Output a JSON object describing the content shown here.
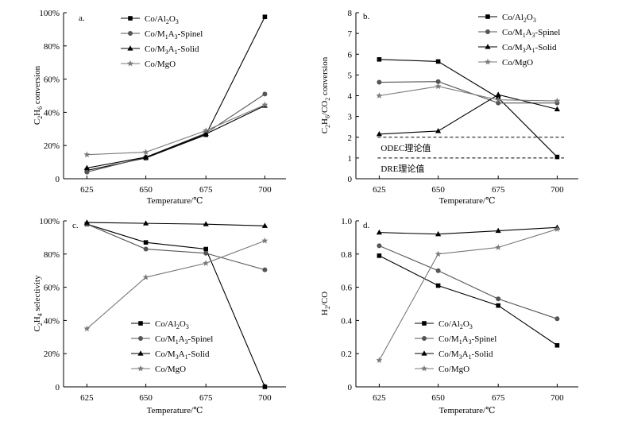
{
  "chart_data": [
    {
      "type": "line",
      "panel_label": "a.",
      "title": "",
      "xlabel": "Temperature/℃",
      "ylabel_parts": [
        "C",
        "2",
        "H",
        "6",
        " conversion"
      ],
      "categories": [
        "625",
        "650",
        "675",
        "700"
      ],
      "ylim": [
        0,
        100
      ],
      "yticks": [
        0,
        20,
        40,
        60,
        80,
        100
      ],
      "ytick_labels": [
        "0",
        "20%",
        "40%",
        "60%",
        "80%",
        "100%"
      ],
      "legend_position": "top-right",
      "series": [
        {
          "name": "Co/Al2O3",
          "label_parts": [
            "Co/Al",
            "2",
            "O",
            "3",
            ""
          ],
          "marker": "square",
          "color": "#000000",
          "values": [
            5.0,
            12.5,
            26.5,
            97.5
          ]
        },
        {
          "name": "Co/M1A3-Spinel",
          "label_parts": [
            "Co/M",
            "1",
            "A",
            "3",
            "-Spinel"
          ],
          "marker": "circle",
          "color": "#555555",
          "values": [
            4.0,
            13.0,
            27.5,
            51.0
          ]
        },
        {
          "name": "Co/M3A1-Solid",
          "label_parts": [
            "Co/M",
            "3",
            "A",
            "1",
            "-Solid"
          ],
          "marker": "triangle",
          "color": "#000000",
          "values": [
            6.5,
            13.0,
            27.0,
            44.0
          ]
        },
        {
          "name": "Co/MgO",
          "label_parts": [
            "Co/MgO",
            "",
            "",
            "",
            ""
          ],
          "marker": "star",
          "color": "#7a7a7a",
          "values": [
            14.5,
            16.0,
            29.0,
            44.5
          ]
        }
      ]
    },
    {
      "type": "line",
      "panel_label": "b.",
      "title": "",
      "xlabel": "Temperature/℃",
      "ylabel_parts": [
        "C",
        "2",
        "H",
        "6",
        "/CO",
        "2",
        " conversion"
      ],
      "categories": [
        "625",
        "650",
        "675",
        "700"
      ],
      "ylim": [
        0,
        8
      ],
      "yticks": [
        0,
        1,
        2,
        3,
        4,
        5,
        6,
        7,
        8
      ],
      "ytick_labels": [
        "0",
        "1",
        "2",
        "3",
        "4",
        "5",
        "6",
        "7",
        "8"
      ],
      "legend_position": "top-right",
      "series": [
        {
          "name": "Co/Al2O3",
          "label_parts": [
            "Co/Al",
            "2",
            "O",
            "3",
            ""
          ],
          "marker": "square",
          "color": "#000000",
          "values": [
            5.75,
            5.65,
            3.9,
            1.05
          ]
        },
        {
          "name": "Co/M1A3-Spinel",
          "label_parts": [
            "Co/M",
            "1",
            "A",
            "3",
            "-Spinel"
          ],
          "marker": "circle",
          "color": "#555555",
          "values": [
            4.65,
            4.68,
            3.65,
            3.65
          ]
        },
        {
          "name": "Co/M3A1-Solid",
          "label_parts": [
            "Co/M",
            "3",
            "A",
            "1",
            "-Solid"
          ],
          "marker": "triangle",
          "color": "#000000",
          "values": [
            2.15,
            2.3,
            4.05,
            3.35
          ]
        },
        {
          "name": "Co/MgO",
          "label_parts": [
            "Co/MgO",
            "",
            "",
            "",
            ""
          ],
          "marker": "star",
          "color": "#7a7a7a",
          "values": [
            4.0,
            4.45,
            3.8,
            3.75
          ]
        }
      ],
      "reference_lines": [
        {
          "value": 2,
          "label": "ODEC理论值"
        },
        {
          "value": 1,
          "label": "DRE理论值"
        }
      ]
    },
    {
      "type": "line",
      "panel_label": "c.",
      "title": "",
      "xlabel": "Temperature/℃",
      "ylabel_parts": [
        "C",
        "2",
        "H",
        "4",
        " selectivity"
      ],
      "categories": [
        "625",
        "650",
        "675",
        "700"
      ],
      "ylim": [
        0,
        100
      ],
      "yticks": [
        0,
        20,
        40,
        60,
        80,
        100
      ],
      "ytick_labels": [
        "0",
        "20%",
        "40%",
        "60%",
        "80%",
        "100%"
      ],
      "legend_position": "bottom-center",
      "series": [
        {
          "name": "Co/Al2O3",
          "label_parts": [
            "Co/Al",
            "2",
            "O",
            "3",
            ""
          ],
          "marker": "square",
          "color": "#000000",
          "values": [
            98.0,
            87.0,
            83.0,
            0.0
          ]
        },
        {
          "name": "Co/M1A3-Spinel",
          "label_parts": [
            "Co/M",
            "1",
            "A",
            "3",
            "-Spinel"
          ],
          "marker": "circle",
          "color": "#555555",
          "values": [
            98.0,
            83.0,
            80.5,
            70.5
          ]
        },
        {
          "name": "Co/M3A1-Solid",
          "label_parts": [
            "Co/M",
            "3",
            "A",
            "1",
            "-Solid"
          ],
          "marker": "triangle",
          "color": "#000000",
          "values": [
            99.0,
            98.5,
            98.0,
            97.0
          ]
        },
        {
          "name": "Co/MgO",
          "label_parts": [
            "Co/MgO",
            "",
            "",
            "",
            ""
          ],
          "marker": "star",
          "color": "#7a7a7a",
          "values": [
            35.0,
            66.0,
            74.5,
            88.0
          ]
        }
      ]
    },
    {
      "type": "line",
      "panel_label": "d.",
      "title": "",
      "xlabel": "Temperature/℃",
      "ylabel_parts": [
        "H",
        "2",
        "/CO"
      ],
      "categories": [
        "625",
        "650",
        "675",
        "700"
      ],
      "ylim": [
        0,
        1
      ],
      "yticks": [
        0,
        0.2,
        0.4,
        0.6,
        0.8,
        1.0
      ],
      "ytick_labels": [
        "0",
        "0.2",
        "0.4",
        "0.6",
        "0.8",
        "1.0"
      ],
      "legend_position": "bottom-center",
      "series": [
        {
          "name": "Co/Al2O3",
          "label_parts": [
            "Co/Al",
            "2",
            "O",
            "3",
            ""
          ],
          "marker": "square",
          "color": "#000000",
          "values": [
            0.79,
            0.61,
            0.49,
            0.25
          ]
        },
        {
          "name": "Co/M1A3-Spinel",
          "label_parts": [
            "Co/M",
            "1",
            "A",
            "3",
            "-Spinel"
          ],
          "marker": "circle",
          "color": "#555555",
          "values": [
            0.85,
            0.7,
            0.53,
            0.41
          ]
        },
        {
          "name": "Co/M3A1-Solid",
          "label_parts": [
            "Co/M",
            "3",
            "A",
            "1",
            "-Solid"
          ],
          "marker": "triangle",
          "color": "#000000",
          "values": [
            0.93,
            0.92,
            0.94,
            0.96
          ]
        },
        {
          "name": "Co/MgO",
          "label_parts": [
            "Co/MgO",
            "",
            "",
            "",
            ""
          ],
          "marker": "star",
          "color": "#7a7a7a",
          "values": [
            0.16,
            0.8,
            0.84,
            0.95
          ]
        }
      ]
    }
  ]
}
